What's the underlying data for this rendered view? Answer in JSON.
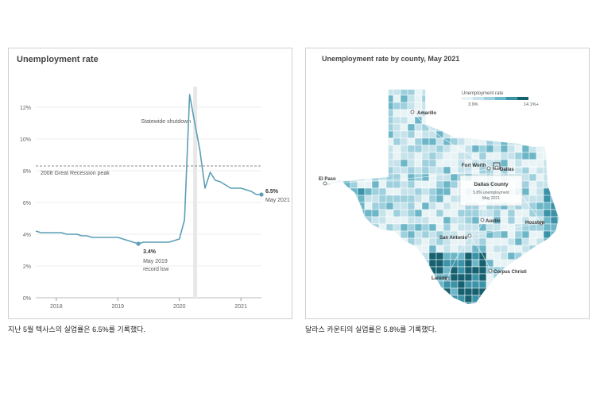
{
  "chart_data": [
    {
      "type": "line",
      "title": "Unemployment rate",
      "ylim": [
        0,
        14
      ],
      "y_ticks": [
        "0%",
        "2%",
        "4%",
        "6%",
        "8%",
        "10%",
        "12%"
      ],
      "x_ticks": [
        "2018",
        "2019",
        "2020",
        "2021"
      ],
      "series": [
        {
          "x": [
            "2017-09",
            "2017-10",
            "2017-11",
            "2017-12",
            "2018-01",
            "2018-02",
            "2018-03",
            "2018-04",
            "2018-05",
            "2018-06",
            "2018-07",
            "2018-08",
            "2018-09",
            "2018-10",
            "2018-11",
            "2018-12",
            "2019-01",
            "2019-02",
            "2019-03",
            "2019-04",
            "2019-05",
            "2019-06",
            "2019-07",
            "2019-08",
            "2019-09",
            "2019-10",
            "2019-11",
            "2019-12",
            "2020-01",
            "2020-02",
            "2020-03",
            "2020-04",
            "2020-05",
            "2020-06",
            "2020-07",
            "2020-08",
            "2020-09",
            "2020-10",
            "2020-11",
            "2020-12",
            "2021-01",
            "2021-02",
            "2021-03",
            "2021-04",
            "2021-05"
          ],
          "y": [
            4.2,
            4.1,
            4.1,
            4.1,
            4.1,
            4.1,
            4.0,
            4.0,
            4.0,
            3.9,
            3.9,
            3.8,
            3.8,
            3.8,
            3.8,
            3.8,
            3.8,
            3.7,
            3.6,
            3.5,
            3.4,
            3.5,
            3.5,
            3.5,
            3.5,
            3.5,
            3.5,
            3.6,
            3.7,
            4.9,
            12.8,
            11.0,
            9.3,
            6.9,
            7.9,
            7.4,
            7.3,
            7.1,
            6.9,
            6.9,
            6.9,
            6.8,
            6.7,
            6.5,
            6.5
          ]
        }
      ],
      "reference_line": {
        "value": 8.3,
        "label": "2008 Great Recession peak"
      },
      "annotations": {
        "shutdown": "Statewide shutdown",
        "low_value": "3.4%",
        "low_label_1": "May 2019",
        "low_label_2": "record low",
        "end_value": "6.5%",
        "end_label": "May 2021"
      },
      "colors": {
        "line": "#5b9fb6",
        "reference": "#888888",
        "shutdown_band": "#e8e8e8"
      }
    },
    {
      "type": "map",
      "title": "Unemployment rate by county, May 2021",
      "legend": {
        "title": "Unemployment rate",
        "min_label": "3.9%",
        "max_label": "14.1%+",
        "colors": [
          "#e8f3f6",
          "#c6e3eb",
          "#9fd0dd",
          "#6cb6c8",
          "#3c93a8",
          "#16606f"
        ]
      },
      "cities": [
        "Amarillo",
        "El Paso",
        "Fort Worth",
        "Dallas",
        "Austin",
        "Houston",
        "San Antonio",
        "Corpus Christi",
        "Laredo"
      ],
      "callout": {
        "title": "Dallas County",
        "line1": "5.8% unemployment",
        "line2": "May 2021"
      }
    }
  ],
  "captions": {
    "left": "지난 5월 텍사스의 실업률은 6.5%를 기록했다.",
    "right": "달라스 카운티의 실업률은 5.8%를 기록했다."
  }
}
